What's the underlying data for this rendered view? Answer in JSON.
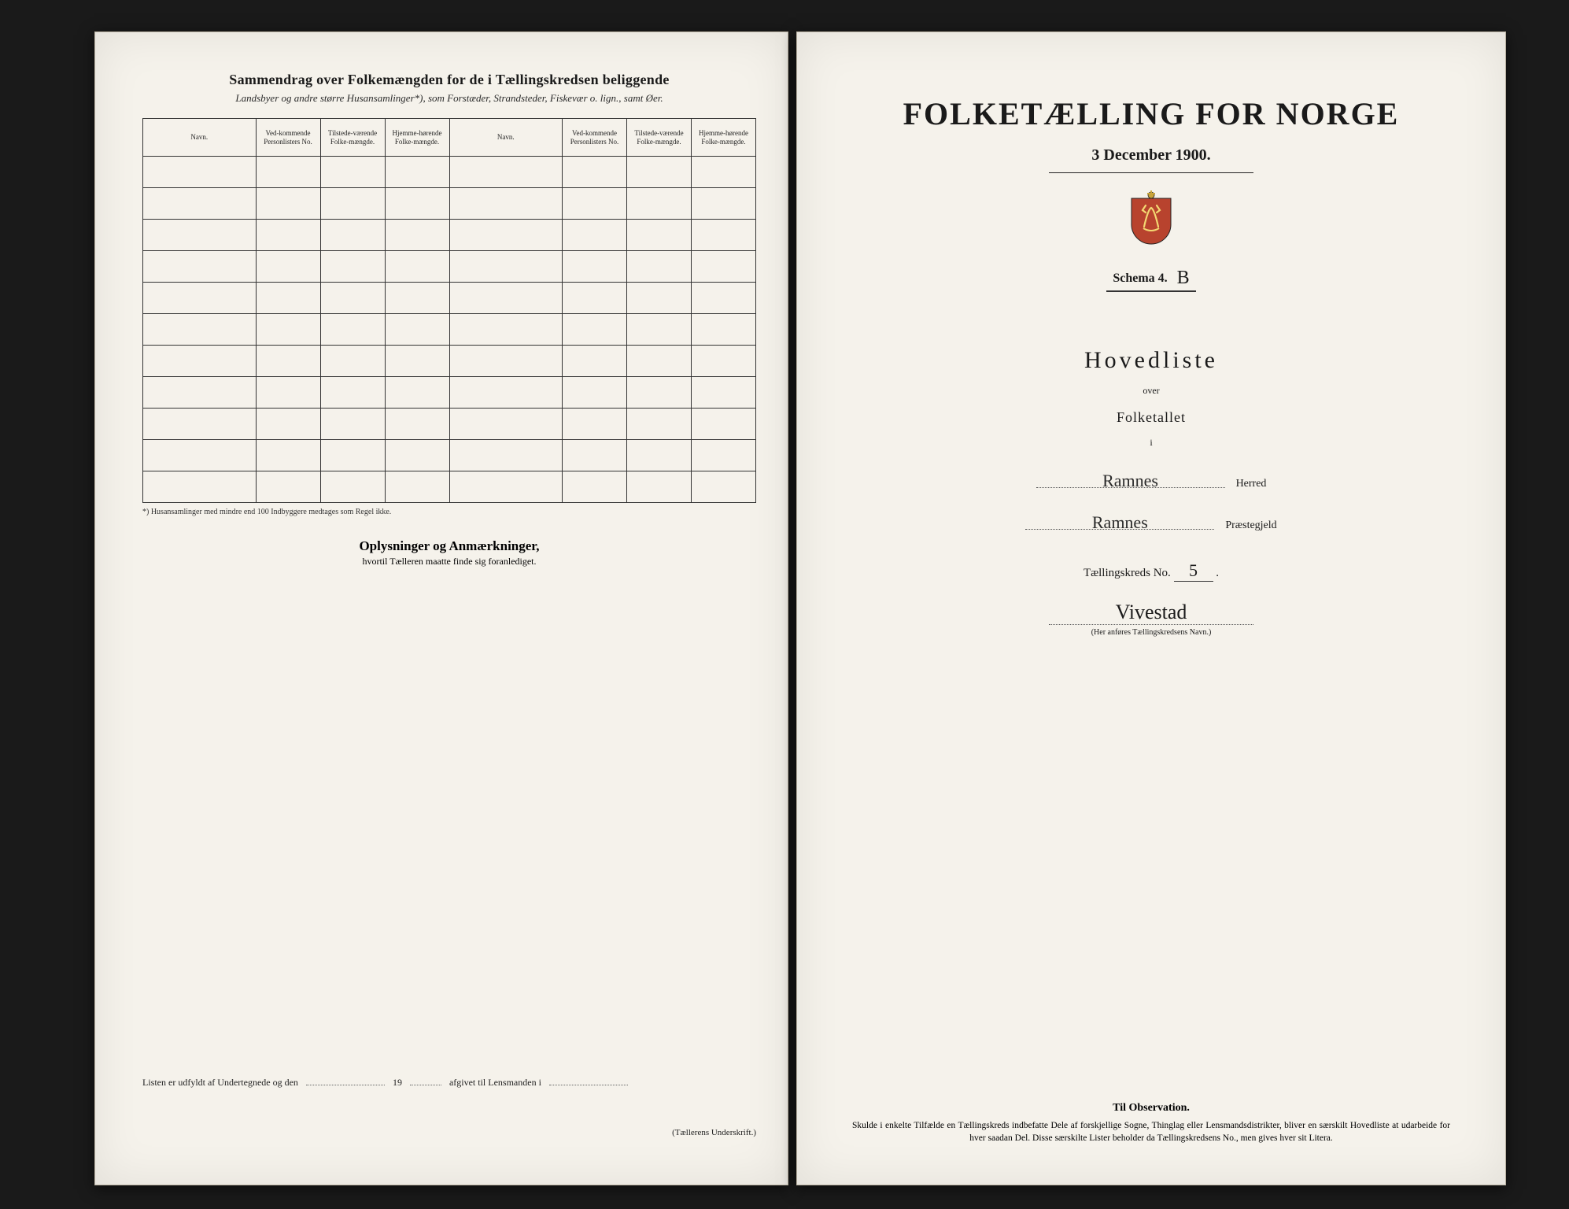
{
  "left_page": {
    "title": "Sammendrag over Folkemængden for de i Tællingskredsen beliggende",
    "subtitle_html": "Landsbyer og andre større Husansamlinger*), som Forstæder, Strandsteder, Fiskevær o. lign., samt Øer.",
    "table": {
      "headers": [
        "Navn.",
        "Ved-kommende Personlisters No.",
        "Tilstede-værende Folke-mængde.",
        "Hjemme-hørende Folke-mængde.",
        "Navn.",
        "Ved-kommende Personlisters No.",
        "Tilstede-værende Folke-mængde.",
        "Hjemme-hørende Folke-mængde."
      ],
      "row_count": 11
    },
    "footnote": "*) Husansamlinger med mindre end 100 Indbyggere medtages som Regel ikke.",
    "section2_title": "Oplysninger og Anmærkninger,",
    "section2_sub": "hvortil Tælleren maatte finde sig foranlediget.",
    "sig_text1": "Listen er udfyldt af Undertegnede og den",
    "sig_text2": "19",
    "sig_text3": "afgivet til Lensmanden i",
    "sig_label": "(Tællerens Underskrift.)"
  },
  "right_page": {
    "main_title": "FOLKETÆLLING FOR NORGE",
    "date": "3 December 1900.",
    "schema_label": "Schema 4.",
    "schema_value": "B",
    "hovedliste": "Hovedliste",
    "over": "over",
    "folketallet": "Folketallet",
    "i": "i",
    "herred_value": "Ramnes",
    "herred_label": "Herred",
    "praeste_value": "Ramnes",
    "praeste_label": "Præstegjeld",
    "tkreds_label": "Tællingskreds No.",
    "tkreds_value": "5",
    "kreds_name": "Vivestad",
    "kreds_note": "(Her anføres Tællingskredsens Navn.)",
    "obs_title": "Til Observation.",
    "obs_text": "Skulde i enkelte Tilfælde en Tællingskreds indbefatte Dele af forskjellige Sogne, Thinglag eller Lensmandsdistrikter, bliver en særskilt Hovedliste at udarbeide for hver saadan Del. Disse særskilte Lister beholder da Tællingskredsens No., men gives hver sit Litera."
  },
  "colors": {
    "page_bg": "#f5f2eb",
    "body_bg": "#1a1a1a",
    "text": "#1a1a1a",
    "border": "#333333"
  }
}
